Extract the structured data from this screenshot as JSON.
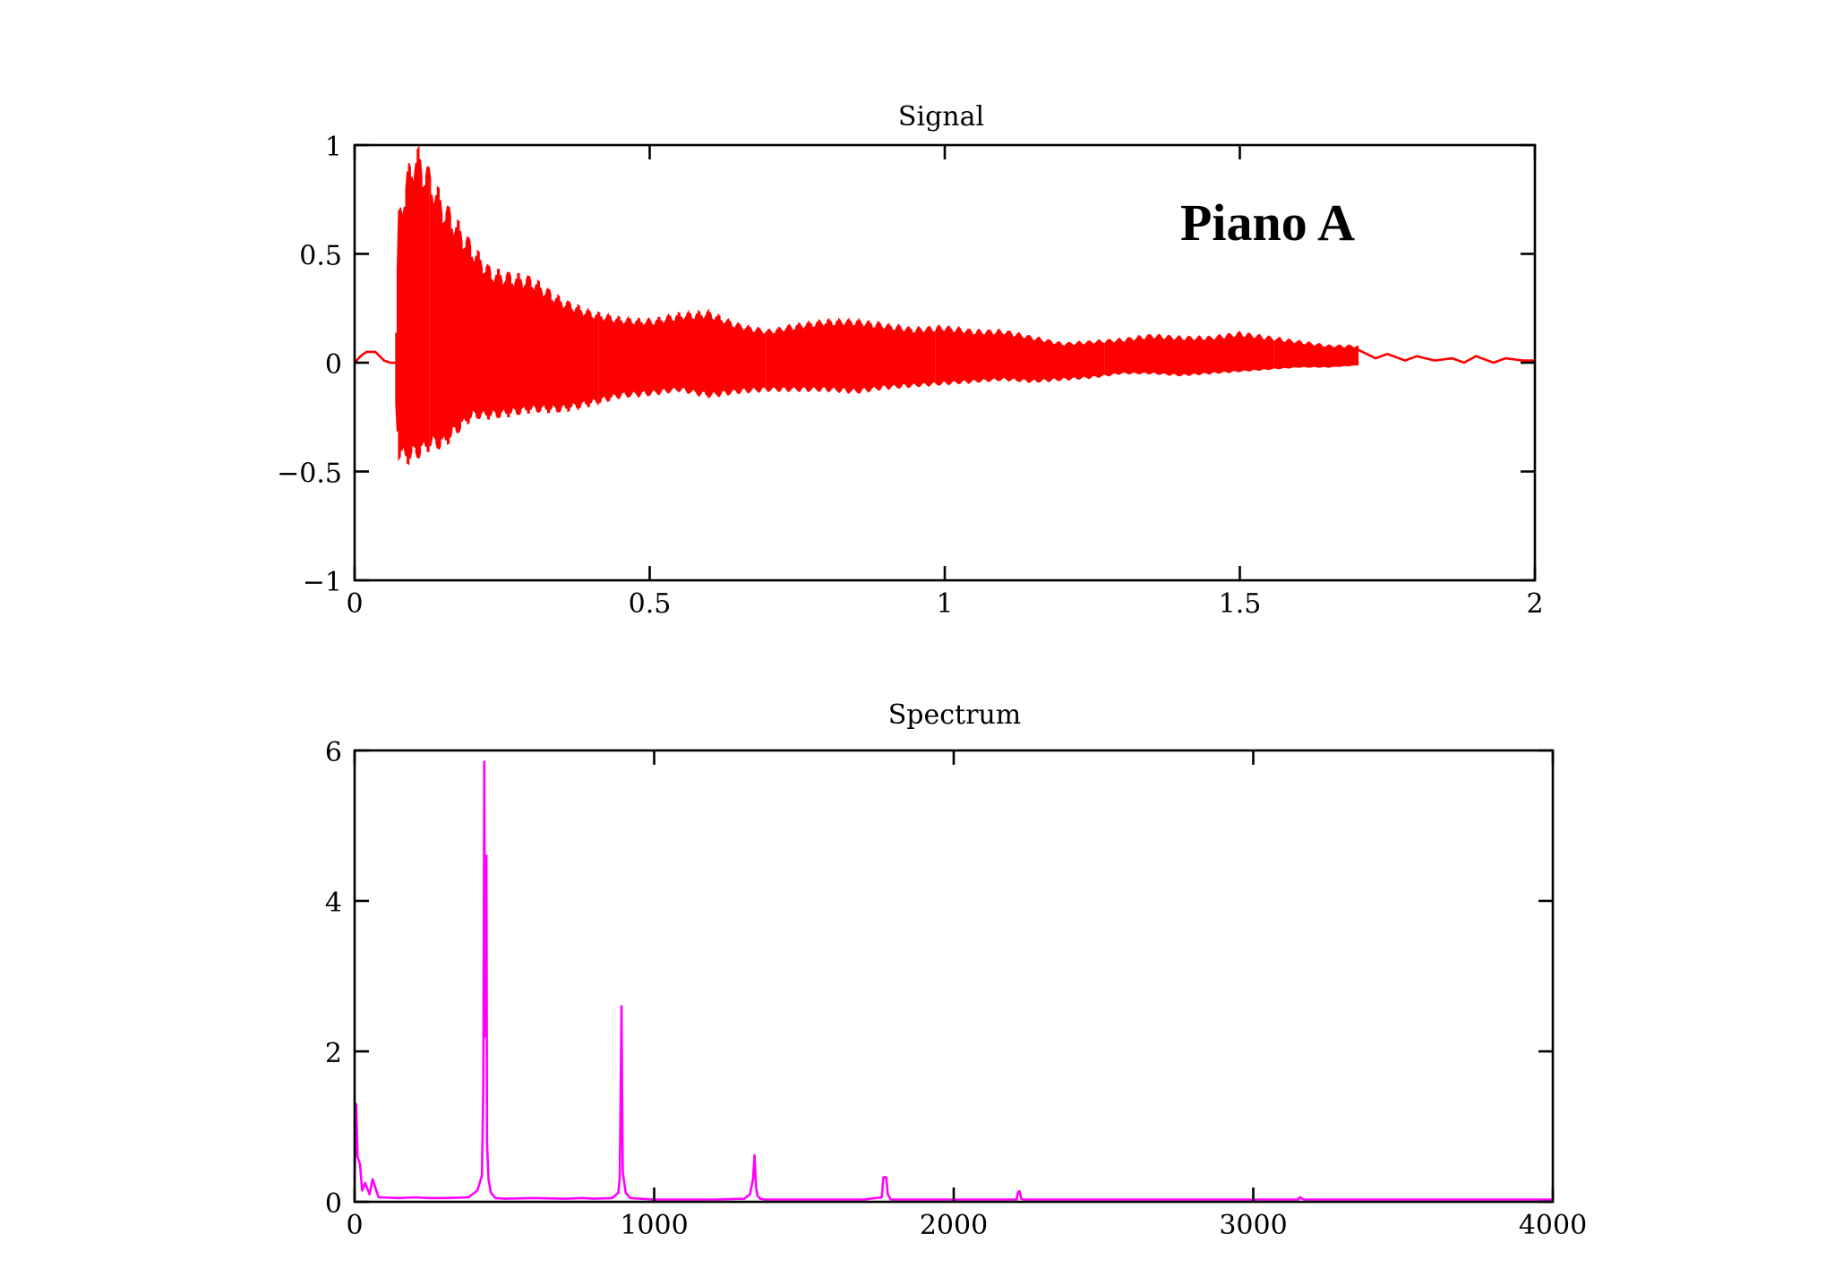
{
  "chart_data": [
    {
      "type": "line",
      "title": "Signal",
      "annotation": "Piano A",
      "xlabel": "",
      "ylabel": "",
      "xlim": [
        0,
        2
      ],
      "ylim": [
        -1,
        1
      ],
      "xticks": [
        0,
        0.5,
        1,
        1.5,
        2
      ],
      "yticks": [
        -1,
        -0.5,
        0,
        0.5,
        1
      ],
      "xtick_labels": [
        "0",
        "0.5",
        "1",
        "1.5",
        "2"
      ],
      "ytick_labels": [
        "−1",
        "−0.5",
        "0",
        "0.5",
        "1"
      ],
      "grid": false,
      "color": "#ff0000",
      "series": [
        {
          "envelope": {
            "x": [
              0.07,
              0.075,
              0.09,
              0.1,
              0.11,
              0.13,
              0.15,
              0.17,
              0.2,
              0.23,
              0.26,
              0.3,
              0.35,
              0.4,
              0.45,
              0.5,
              0.55,
              0.6,
              0.65,
              0.7,
              0.75,
              0.8,
              0.85,
              0.9,
              0.95,
              1.0,
              1.05,
              1.1,
              1.15,
              1.2,
              1.25,
              1.3,
              1.35,
              1.4,
              1.45,
              1.5,
              1.55,
              1.6,
              1.65,
              1.7
            ],
            "upper": [
              0.15,
              0.72,
              0.9,
              1.0,
              0.99,
              0.88,
              0.76,
              0.68,
              0.55,
              0.44,
              0.42,
              0.4,
              0.3,
              0.24,
              0.21,
              0.2,
              0.23,
              0.24,
              0.18,
              0.15,
              0.18,
              0.2,
              0.2,
              0.18,
              0.16,
              0.17,
              0.15,
              0.15,
              0.12,
              0.09,
              0.1,
              0.11,
              0.13,
              0.12,
              0.12,
              0.14,
              0.12,
              0.1,
              0.08,
              0.08
            ],
            "lower": [
              -0.2,
              -0.45,
              -0.47,
              -0.45,
              -0.44,
              -0.4,
              -0.4,
              -0.34,
              -0.26,
              -0.26,
              -0.25,
              -0.23,
              -0.23,
              -0.2,
              -0.16,
              -0.15,
              -0.13,
              -0.16,
              -0.14,
              -0.13,
              -0.13,
              -0.13,
              -0.14,
              -0.12,
              -0.11,
              -0.1,
              -0.09,
              -0.08,
              -0.09,
              -0.08,
              -0.07,
              -0.05,
              -0.05,
              -0.06,
              -0.05,
              -0.04,
              -0.03,
              -0.02,
              -0.02,
              -0.01
            ]
          },
          "tail": {
            "x": [
              0,
              0.01,
              0.02,
              0.035,
              0.05,
              0.06,
              0.07
            ],
            "y": [
              0.0,
              0.03,
              0.05,
              0.05,
              0.01,
              0.0,
              0.0
            ]
          },
          "end": {
            "x": [
              1.7,
              1.73,
              1.75,
              1.78,
              1.8,
              1.83,
              1.86,
              1.88,
              1.9,
              1.93,
              1.95,
              1.98,
              2.0
            ],
            "y": [
              0.06,
              0.02,
              0.04,
              0.01,
              0.03,
              0.01,
              0.02,
              0.0,
              0.03,
              0.0,
              0.02,
              0.01,
              0.01
            ]
          }
        }
      ]
    },
    {
      "type": "line",
      "title": "Spectrum",
      "xlabel": "",
      "ylabel": "",
      "xlim": [
        0,
        4000
      ],
      "ylim": [
        0,
        6
      ],
      "xticks": [
        0,
        1000,
        2000,
        3000,
        4000
      ],
      "yticks": [
        0,
        2,
        4,
        6
      ],
      "xtick_labels": [
        "0",
        "1000",
        "2000",
        "3000",
        "4000"
      ],
      "ytick_labels": [
        "0",
        "2",
        "4",
        "6"
      ],
      "grid": false,
      "color": "#ff00ff",
      "series": [
        {
          "x": [
            0,
            5,
            10,
            18,
            25,
            35,
            50,
            60,
            80,
            150,
            200,
            250,
            300,
            380,
            410,
            425,
            430,
            433,
            436,
            440,
            442,
            447,
            455,
            470,
            500,
            600,
            700,
            760,
            800,
            860,
            880,
            885,
            888,
            891,
            895,
            905,
            920,
            1000,
            1200,
            1300,
            1320,
            1330,
            1335,
            1340,
            1345,
            1355,
            1370,
            1500,
            1700,
            1760,
            1765,
            1770,
            1775,
            1780,
            1790,
            2000,
            2210,
            2215,
            2220,
            2225,
            2235,
            2500,
            3000,
            3150,
            3155,
            3160,
            3170,
            3500,
            4000
          ],
          "y": [
            0.3,
            1.3,
            0.6,
            0.5,
            0.15,
            0.25,
            0.1,
            0.3,
            0.06,
            0.05,
            0.06,
            0.05,
            0.05,
            0.06,
            0.15,
            0.35,
            1.6,
            5.85,
            2.2,
            4.6,
            0.8,
            0.3,
            0.12,
            0.05,
            0.04,
            0.05,
            0.04,
            0.05,
            0.04,
            0.05,
            0.12,
            0.3,
            1.3,
            2.6,
            0.4,
            0.12,
            0.05,
            0.03,
            0.03,
            0.04,
            0.1,
            0.3,
            0.62,
            0.2,
            0.08,
            0.04,
            0.03,
            0.03,
            0.03,
            0.06,
            0.32,
            0.33,
            0.32,
            0.1,
            0.03,
            0.03,
            0.03,
            0.13,
            0.14,
            0.04,
            0.03,
            0.03,
            0.03,
            0.03,
            0.06,
            0.05,
            0.03,
            0.03,
            0.03
          ]
        }
      ]
    }
  ]
}
